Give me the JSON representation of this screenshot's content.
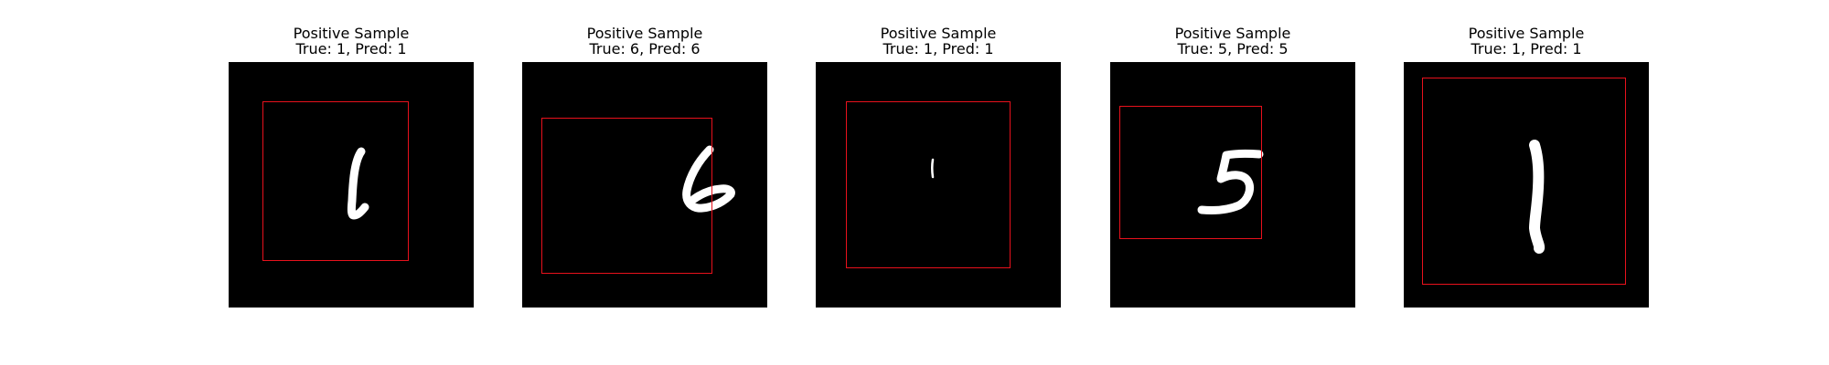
{
  "samples": [
    {
      "title": "Positive Sample",
      "subtitle": "True: 1, Pred: 1",
      "digit": "1",
      "box_color": "#e8111c"
    },
    {
      "title": "Positive Sample",
      "subtitle": "True: 6, Pred: 6",
      "digit": "6",
      "box_color": "#e8111c"
    },
    {
      "title": "Positive Sample",
      "subtitle": "True: 1, Pred: 1",
      "digit": "1",
      "box_color": "#e8111c"
    },
    {
      "title": "Positive Sample",
      "subtitle": "True: 5, Pred: 5",
      "digit": "5",
      "box_color": "#e8111c"
    },
    {
      "title": "Positive Sample",
      "subtitle": "True: 1, Pred: 1",
      "digit": "1",
      "box_color": "#e8111c"
    }
  ]
}
